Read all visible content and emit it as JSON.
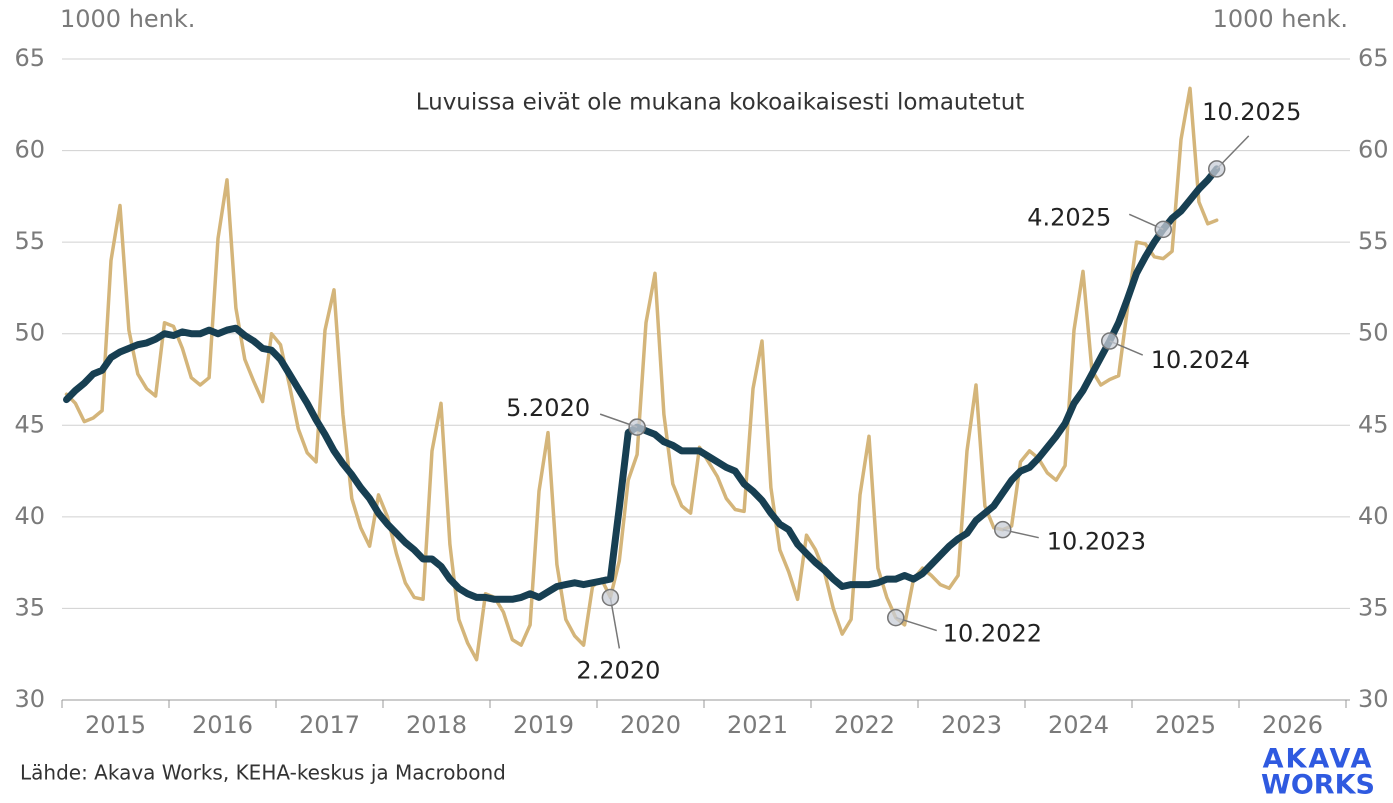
{
  "chart_data": {
    "type": "line",
    "y_label": "1000 henk.",
    "y2_label": "1000 henk.",
    "annotations": [
      {
        "label": "Luvuissa eivät ole mukana kokoaikaisesti lomautetut"
      },
      {
        "label": "10.2025",
        "x": 2025.792,
        "y": 59.0
      },
      {
        "label": "4.2025",
        "x": 2025.292,
        "y": 55.7
      },
      {
        "label": "10.2024",
        "x": 2024.792,
        "y": 49.6
      },
      {
        "label": "10.2023",
        "x": 2023.792,
        "y": 39.3
      },
      {
        "label": "10.2022",
        "x": 2022.792,
        "y": 34.5
      },
      {
        "label": "5.2020",
        "x": 2020.375,
        "y": 44.9
      },
      {
        "label": "2.2020",
        "x": 2020.125,
        "y": 35.6
      }
    ],
    "x": [
      2015.042,
      2015.125,
      2015.208,
      2015.292,
      2015.375,
      2015.458,
      2015.542,
      2015.625,
      2015.708,
      2015.792,
      2015.875,
      2015.958,
      2016.042,
      2016.125,
      2016.208,
      2016.292,
      2016.375,
      2016.458,
      2016.542,
      2016.625,
      2016.708,
      2016.792,
      2016.875,
      2016.958,
      2017.042,
      2017.125,
      2017.208,
      2017.292,
      2017.375,
      2017.458,
      2017.542,
      2017.625,
      2017.708,
      2017.792,
      2017.875,
      2017.958,
      2018.042,
      2018.125,
      2018.208,
      2018.292,
      2018.375,
      2018.458,
      2018.542,
      2018.625,
      2018.708,
      2018.792,
      2018.875,
      2018.958,
      2019.042,
      2019.125,
      2019.208,
      2019.292,
      2019.375,
      2019.458,
      2019.542,
      2019.625,
      2019.708,
      2019.792,
      2019.875,
      2019.958,
      2020.042,
      2020.125,
      2020.208,
      2020.292,
      2020.375,
      2020.458,
      2020.542,
      2020.625,
      2020.708,
      2020.792,
      2020.875,
      2020.958,
      2021.042,
      2021.125,
      2021.208,
      2021.292,
      2021.375,
      2021.458,
      2021.542,
      2021.625,
      2021.708,
      2021.792,
      2021.875,
      2021.958,
      2022.042,
      2022.125,
      2022.208,
      2022.292,
      2022.375,
      2022.458,
      2022.542,
      2022.625,
      2022.708,
      2022.792,
      2022.875,
      2022.958,
      2023.042,
      2023.125,
      2023.208,
      2023.292,
      2023.375,
      2023.458,
      2023.542,
      2023.625,
      2023.708,
      2023.792,
      2023.875,
      2023.958,
      2024.042,
      2024.125,
      2024.208,
      2024.292,
      2024.375,
      2024.458,
      2024.542,
      2024.625,
      2024.708,
      2024.792,
      2024.875,
      2024.958,
      2025.042,
      2025.125,
      2025.208,
      2025.292,
      2025.375,
      2025.458,
      2025.542,
      2025.625,
      2025.708,
      2025.792
    ],
    "series": [
      {
        "color": "#d4b57a",
        "values": [
          46.7,
          46.2,
          45.2,
          45.4,
          45.8,
          54.0,
          57.0,
          50.2,
          47.8,
          47.0,
          46.6,
          50.6,
          50.4,
          49.2,
          47.6,
          47.2,
          47.6,
          55.2,
          58.4,
          51.4,
          48.6,
          47.4,
          46.3,
          50.0,
          49.4,
          47.2,
          44.8,
          43.5,
          43.0,
          50.2,
          52.4,
          45.6,
          41.0,
          39.4,
          38.4,
          41.2,
          40.0,
          38.0,
          36.4,
          35.6,
          35.5,
          43.6,
          46.2,
          38.5,
          34.4,
          33.1,
          32.2,
          35.8,
          35.6,
          34.8,
          33.3,
          33.0,
          34.1,
          41.4,
          44.6,
          37.4,
          34.4,
          33.5,
          33.0,
          36.2,
          36.6,
          35.6,
          37.6,
          42.0,
          43.4,
          50.6,
          53.3,
          45.6,
          41.8,
          40.6,
          40.2,
          43.8,
          43.0,
          42.2,
          41.0,
          40.4,
          40.3,
          47.0,
          49.6,
          41.6,
          38.2,
          37.0,
          35.5,
          39.0,
          38.2,
          37.0,
          35.0,
          33.6,
          34.4,
          41.2,
          44.4,
          37.2,
          35.6,
          34.5,
          34.1,
          36.6,
          37.2,
          36.8,
          36.3,
          36.1,
          36.8,
          43.6,
          47.2,
          40.6,
          39.4,
          39.3,
          39.5,
          43.0,
          43.6,
          43.2,
          42.4,
          42.0,
          42.8,
          50.2,
          53.4,
          48.0,
          47.2,
          47.5,
          47.7,
          51.4,
          55.0,
          54.9,
          54.2,
          54.1,
          54.5,
          60.6,
          63.4,
          57.2,
          56.0,
          56.2
        ]
      },
      {
        "color": "#173f52",
        "values": [
          46.4,
          46.9,
          47.3,
          47.8,
          48.0,
          48.7,
          49.0,
          49.2,
          49.4,
          49.5,
          49.7,
          50.0,
          49.9,
          50.1,
          50.0,
          50.0,
          50.2,
          50.0,
          50.2,
          50.3,
          49.9,
          49.6,
          49.2,
          49.1,
          48.6,
          47.8,
          47.0,
          46.2,
          45.3,
          44.5,
          43.6,
          42.9,
          42.3,
          41.6,
          41.0,
          40.2,
          39.6,
          39.1,
          38.6,
          38.2,
          37.7,
          37.7,
          37.3,
          36.6,
          36.1,
          35.8,
          35.6,
          35.6,
          35.5,
          35.5,
          35.5,
          35.6,
          35.8,
          35.6,
          35.9,
          36.2,
          36.3,
          36.4,
          36.3,
          36.4,
          36.5,
          36.6,
          40.5,
          44.6,
          44.9,
          44.7,
          44.5,
          44.1,
          43.9,
          43.6,
          43.6,
          43.6,
          43.3,
          43.0,
          42.7,
          42.5,
          41.8,
          41.4,
          40.9,
          40.2,
          39.6,
          39.3,
          38.5,
          38.0,
          37.5,
          37.1,
          36.6,
          36.2,
          36.3,
          36.3,
          36.3,
          36.4,
          36.6,
          36.6,
          36.8,
          36.6,
          36.9,
          37.4,
          37.9,
          38.4,
          38.8,
          39.1,
          39.8,
          40.2,
          40.6,
          41.3,
          42.0,
          42.5,
          42.7,
          43.2,
          43.8,
          44.4,
          45.1,
          46.2,
          46.9,
          47.8,
          48.7,
          49.6,
          50.6,
          51.9,
          53.3,
          54.2,
          55.0,
          55.7,
          56.3,
          56.7,
          57.3,
          57.9,
          58.4,
          59.0
        ]
      }
    ],
    "xlim": [
      2015,
      2027
    ],
    "xticks": [
      {
        "value": 2015,
        "label": "2015"
      },
      {
        "value": 2016,
        "label": "2016"
      },
      {
        "value": 2017,
        "label": "2017"
      },
      {
        "value": 2018,
        "label": "2018"
      },
      {
        "value": 2019,
        "label": "2019"
      },
      {
        "value": 2020,
        "label": "2020"
      },
      {
        "value": 2021,
        "label": "2021"
      },
      {
        "value": 2022,
        "label": "2022"
      },
      {
        "value": 2023,
        "label": "2023"
      },
      {
        "value": 2024,
        "label": "2024"
      },
      {
        "value": 2025,
        "label": "2025"
      },
      {
        "value": 2026,
        "label": "2026"
      }
    ],
    "ylim": [
      30,
      65
    ],
    "yticks": [
      30,
      35,
      40,
      45,
      50,
      55,
      60,
      65
    ],
    "y2lim": [
      30,
      65
    ],
    "y2ticks": [
      30,
      35,
      40,
      45,
      50,
      55,
      60,
      65
    ],
    "grid": true
  },
  "source": "Lähde: Akava Works, KEHA-keskus ja Macrobond",
  "logo": {
    "line1": "AKAVA",
    "line2": "WORKS"
  }
}
